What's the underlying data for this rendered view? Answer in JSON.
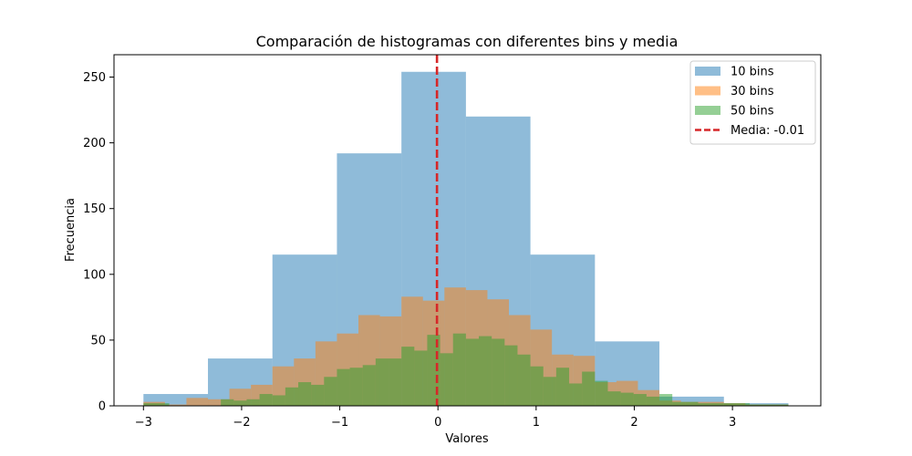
{
  "chart_data": {
    "type": "histogram",
    "title": "Comparación de histogramas con diferentes bins y media",
    "xlabel": "Valores",
    "ylabel": "Frecuencia",
    "xlim": [
      -3.3,
      3.9
    ],
    "ylim": [
      0,
      267
    ],
    "xticks": [
      -3,
      -2,
      -1,
      0,
      1,
      2,
      3
    ],
    "yticks": [
      0,
      50,
      100,
      150,
      200,
      250
    ],
    "xtick_labels": [
      "−3",
      "−2",
      "−1",
      "0",
      "1",
      "2",
      "3"
    ],
    "ytick_labels": [
      "0",
      "50",
      "100",
      "150",
      "200",
      "250"
    ],
    "grid": false,
    "legend_position": "top-right",
    "series": [
      {
        "name": "10 bins",
        "color": "#1f77b4",
        "alpha": 0.5,
        "range": [
          -3.0,
          3.57
        ],
        "values": [
          9,
          36,
          115,
          192,
          254,
          220,
          115,
          49,
          7,
          2
        ]
      },
      {
        "name": "30 bins",
        "color": "#ff7f0e",
        "alpha": 0.5,
        "range": [
          -3.0,
          3.57
        ],
        "values": [
          3,
          1,
          6,
          5,
          13,
          16,
          30,
          36,
          49,
          55,
          69,
          68,
          83,
          80,
          90,
          88,
          81,
          69,
          58,
          39,
          38,
          18,
          19,
          12,
          4,
          3,
          3,
          2,
          1,
          1
        ]
      },
      {
        "name": "50 bins",
        "color": "#2ca02c",
        "alpha": 0.5,
        "range": [
          -3.0,
          3.57
        ],
        "values": [
          2,
          2,
          0,
          0,
          0,
          0,
          5,
          4,
          5,
          9,
          8,
          14,
          18,
          16,
          22,
          28,
          29,
          31,
          36,
          36,
          45,
          42,
          54,
          40,
          55,
          51,
          53,
          51,
          46,
          39,
          30,
          22,
          29,
          17,
          26,
          19,
          11,
          10,
          9,
          7,
          9,
          3,
          3,
          2,
          2,
          2,
          2,
          1,
          1,
          1
        ]
      }
    ],
    "mean_line": {
      "name": "Media: -0.01",
      "value": -0.01,
      "color": "#d62728",
      "style": "dashed"
    }
  }
}
